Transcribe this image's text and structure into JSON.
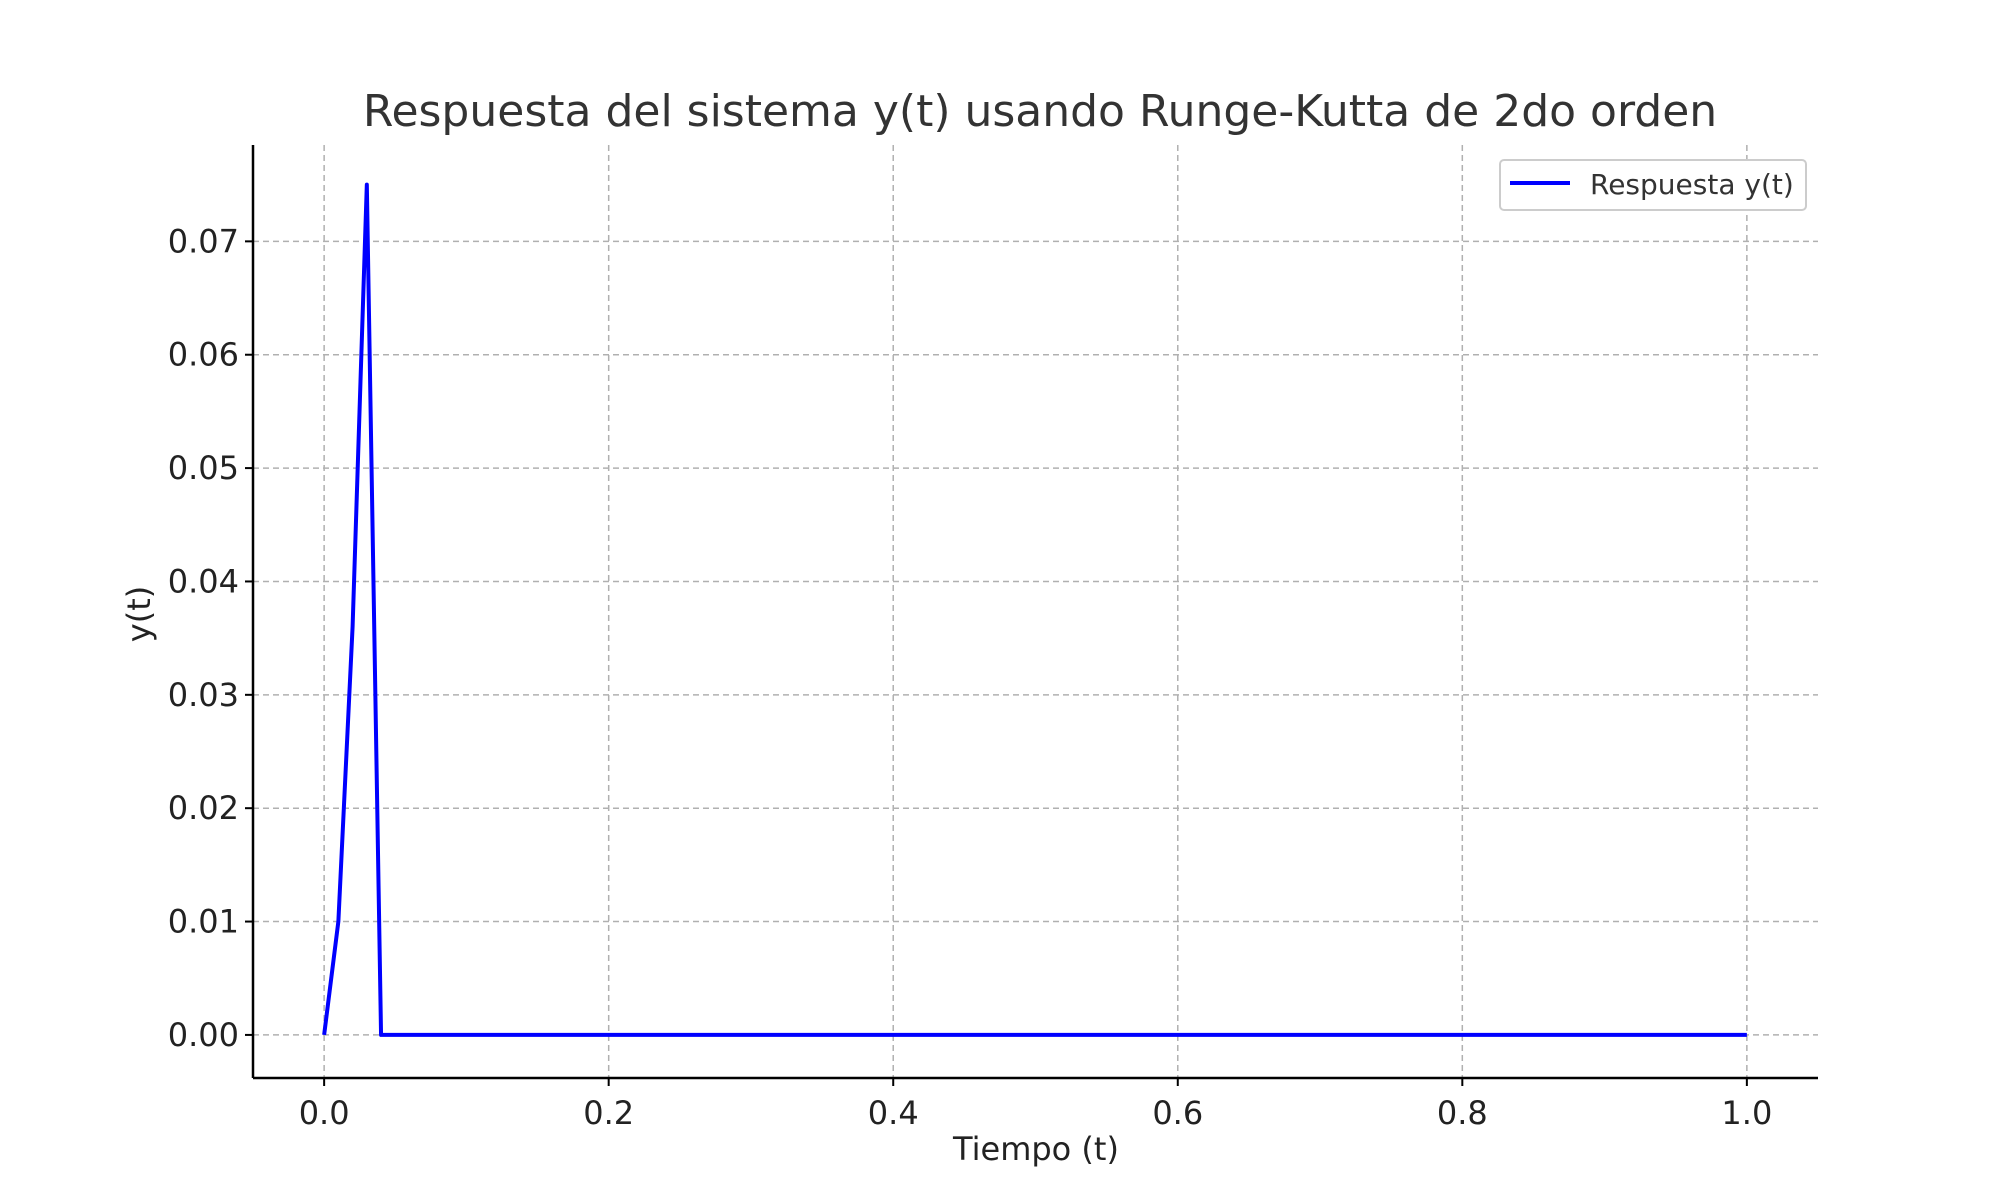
{
  "chart_data": {
    "type": "line",
    "title": "Respuesta del sistema y(t) usando Runge-Kutta de 2do orden",
    "xlabel": "Tiempo (t)",
    "ylabel": "y(t)",
    "xlim": [
      -0.05,
      1.05
    ],
    "ylim": [
      -0.0038,
      0.0785
    ],
    "x_ticks": [
      0.0,
      0.2,
      0.4,
      0.6,
      0.8,
      1.0
    ],
    "x_tick_labels": [
      "0.0",
      "0.2",
      "0.4",
      "0.6",
      "0.8",
      "1.0"
    ],
    "y_ticks": [
      0.0,
      0.01,
      0.02,
      0.03,
      0.04,
      0.05,
      0.06,
      0.07
    ],
    "y_tick_labels": [
      "0.00",
      "0.01",
      "0.02",
      "0.03",
      "0.04",
      "0.05",
      "0.06",
      "0.07"
    ],
    "grid": true,
    "legend_position": "top-right",
    "series": [
      {
        "name": "Respuesta y(t)",
        "color": "#0000ff",
        "x": [
          0.0,
          0.01,
          0.02,
          0.03,
          0.04,
          0.05,
          0.1,
          0.2,
          0.3,
          0.4,
          0.5,
          0.6,
          0.7,
          0.8,
          0.9,
          1.0
        ],
        "y": [
          0.0,
          0.01,
          0.036,
          0.075,
          0.0,
          0.0,
          0.0,
          0.0,
          0.0,
          0.0,
          0.0,
          0.0,
          0.0,
          0.0,
          0.0,
          0.0
        ]
      }
    ]
  },
  "colors": {
    "axis": "#000000",
    "grid": "#b0b0b0",
    "text": "#333333",
    "legend_border": "#cccccc"
  }
}
